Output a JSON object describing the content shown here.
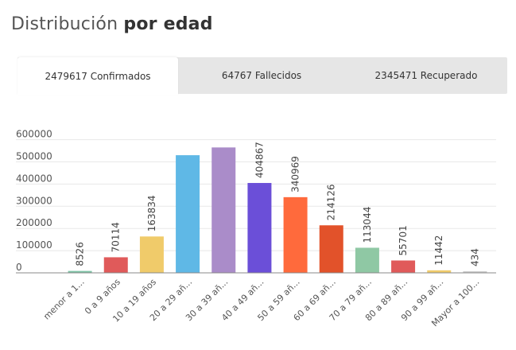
{
  "title": {
    "regular": "Distribución",
    "bold": "por edad"
  },
  "tabs": [
    {
      "label": "2479617 Confirmados",
      "active": true
    },
    {
      "label": "64767 Fallecidos",
      "active": false
    },
    {
      "label": "2345471 Recuperado",
      "active": false
    }
  ],
  "chart_data": {
    "type": "bar",
    "categories": [
      "menor a 1...",
      "0 a 9 años",
      "10 a 19 años",
      "20 a 29 añ...",
      "30 a 39 añ...",
      "40 a 49 añ...",
      "50 a 59 añ...",
      "60 a 69 añ...",
      "70 a 79 añ...",
      "80 a 89 añ...",
      "90 a 99 añ...",
      "Mayor a 100..."
    ],
    "values": [
      8526,
      70114,
      163834,
      530000,
      565000,
      404867,
      340969,
      214126,
      113044,
      55701,
      11442,
      434
    ],
    "data_labels": [
      "8526",
      "70114",
      "163834",
      "",
      "",
      "404867",
      "340969",
      "214126",
      "113044",
      "55701",
      "11442",
      "434"
    ],
    "colors": [
      "#7ec4a6",
      "#e05a5a",
      "#f0cb6a",
      "#5fb8e6",
      "#aa8cc9",
      "#6b4fd8",
      "#ff6a3c",
      "#e2522a",
      "#8fc8a4",
      "#e05a5a",
      "#f0cb6a",
      "#cccccc"
    ],
    "yticks": [
      "0",
      "100000",
      "200000",
      "300000",
      "400000",
      "500000",
      "600000"
    ],
    "ylim": [
      0,
      620000
    ],
    "grid": true
  }
}
